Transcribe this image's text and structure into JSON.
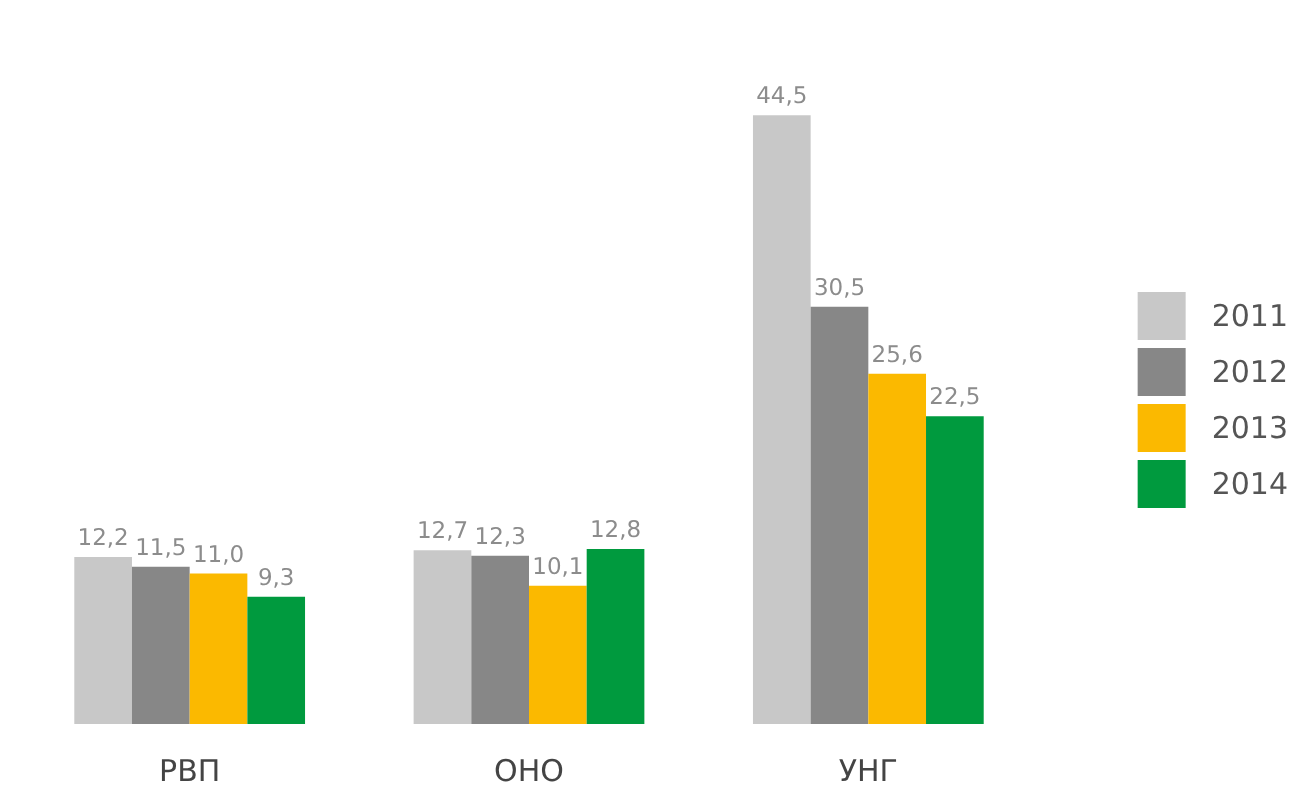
{
  "chart_data": {
    "type": "bar",
    "categories": [
      "РВП",
      "ОНО",
      "УНГ"
    ],
    "series": [
      {
        "name": "2011",
        "color": "#c8c8c8",
        "values": [
          12.2,
          12.7,
          44.5
        ],
        "value_labels": [
          "12,2",
          "12,7",
          "44,5"
        ]
      },
      {
        "name": "2012",
        "color": "#878787",
        "values": [
          11.5,
          12.3,
          30.5
        ],
        "value_labels": [
          "11,5",
          "12,3",
          "30,5"
        ]
      },
      {
        "name": "2013",
        "color": "#fbb900",
        "values": [
          11.0,
          10.1,
          25.6
        ],
        "value_labels": [
          "11,0",
          "10,1",
          "25,6"
        ]
      },
      {
        "name": "2014",
        "color": "#009a3e",
        "values": [
          9.3,
          12.8,
          22.5
        ],
        "value_labels": [
          "9,3",
          "12,8",
          "22,5"
        ]
      }
    ],
    "legend": "right"
  }
}
